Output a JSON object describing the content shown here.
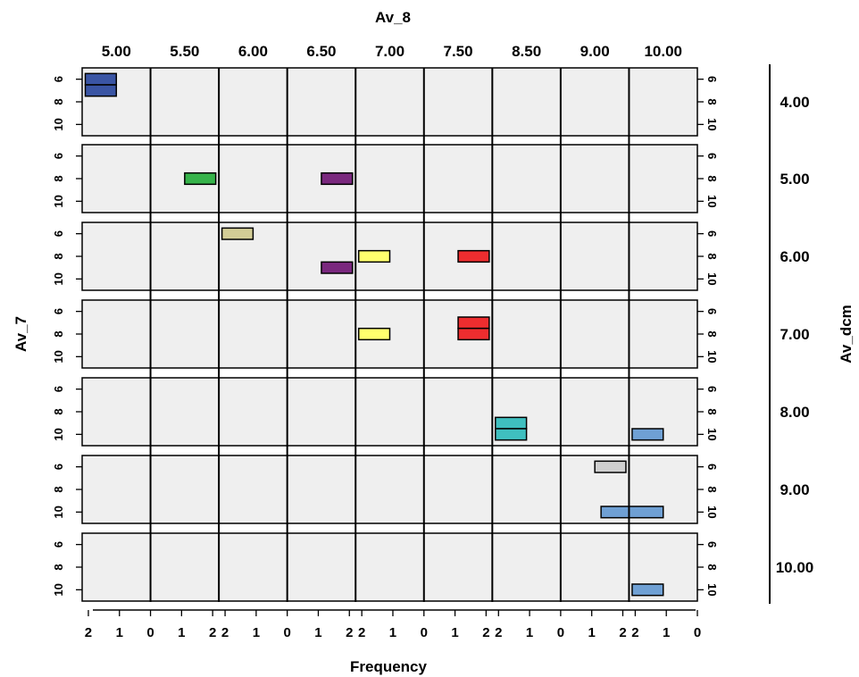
{
  "chart_data": {
    "type": "bar",
    "title": "Av_8",
    "xlabel": "Frequency",
    "ylabel_left": "Av_7",
    "ylabel_right": "Av_dcm",
    "column_levels": [
      "5.00",
      "5.50",
      "6.00",
      "6.50",
      "7.00",
      "7.50",
      "8.50",
      "9.00",
      "10.00"
    ],
    "row_levels": [
      "4.00",
      "5.00",
      "6.00",
      "7.00",
      "8.00",
      "9.00",
      "10.00"
    ],
    "x_tick_labels": [
      "2",
      "1",
      "0",
      "1",
      "2",
      "2",
      "1",
      "0",
      "1",
      "2",
      "2",
      "1",
      "0",
      "1",
      "2",
      "2",
      "1",
      "0",
      "1",
      "2",
      "2",
      "1",
      "0"
    ],
    "y_tick_labels": [
      "6",
      "8",
      "10"
    ],
    "ylim": [
      11,
      5
    ],
    "colors": {
      "panel_background": "#efefef",
      "5.00": "#3a55a4",
      "5.50": "#36b34a",
      "6.00": "#d3cd96",
      "6.50": "#7a287e",
      "7.00": "#ffff6e",
      "7.50": "#ed2d2f",
      "8.50": "#3fbfbf",
      "9.00": "#cfcfcf",
      "10.00": "#6fa0d4"
    },
    "bars": [
      {
        "row": "4.00",
        "col": "5.00",
        "side": "left",
        "av7": 6,
        "freq": 1
      },
      {
        "row": "4.00",
        "col": "5.00",
        "side": "left",
        "av7": 7,
        "freq": 1
      },
      {
        "row": "5.00",
        "col": "5.50",
        "side": "right",
        "av7": 8,
        "freq": 1
      },
      {
        "row": "5.00",
        "col": "6.50",
        "side": "right",
        "av7": 8,
        "freq": 1
      },
      {
        "row": "6.00",
        "col": "6.00",
        "side": "left",
        "av7": 6,
        "freq": 1
      },
      {
        "row": "6.00",
        "col": "6.50",
        "side": "right",
        "av7": 9,
        "freq": 1
      },
      {
        "row": "6.00",
        "col": "7.00",
        "side": "left",
        "av7": 8,
        "freq": 1
      },
      {
        "row": "6.00",
        "col": "7.50",
        "side": "right",
        "av7": 8,
        "freq": 1
      },
      {
        "row": "7.00",
        "col": "7.50",
        "side": "right",
        "av7": 7,
        "freq": 1
      },
      {
        "row": "7.00",
        "col": "7.50",
        "side": "right",
        "av7": 8,
        "freq": 1
      },
      {
        "row": "7.00",
        "col": "7.00",
        "side": "left",
        "av7": 8,
        "freq": 1
      },
      {
        "row": "8.00",
        "col": "8.50",
        "side": "left",
        "av7": 9,
        "freq": 1
      },
      {
        "row": "8.00",
        "col": "8.50",
        "side": "left",
        "av7": 10,
        "freq": 1
      },
      {
        "row": "8.00",
        "col": "10.00",
        "side": "left",
        "av7": 10,
        "freq": 1
      },
      {
        "row": "9.00",
        "col": "9.00",
        "side": "right",
        "av7": 6,
        "freq": 1
      },
      {
        "row": "9.00",
        "col": "10.00",
        "side": "left",
        "av7": 10,
        "freq": 2
      },
      {
        "row": "10.00",
        "col": "10.00",
        "side": "left",
        "av7": 10,
        "freq": 1
      }
    ]
  }
}
